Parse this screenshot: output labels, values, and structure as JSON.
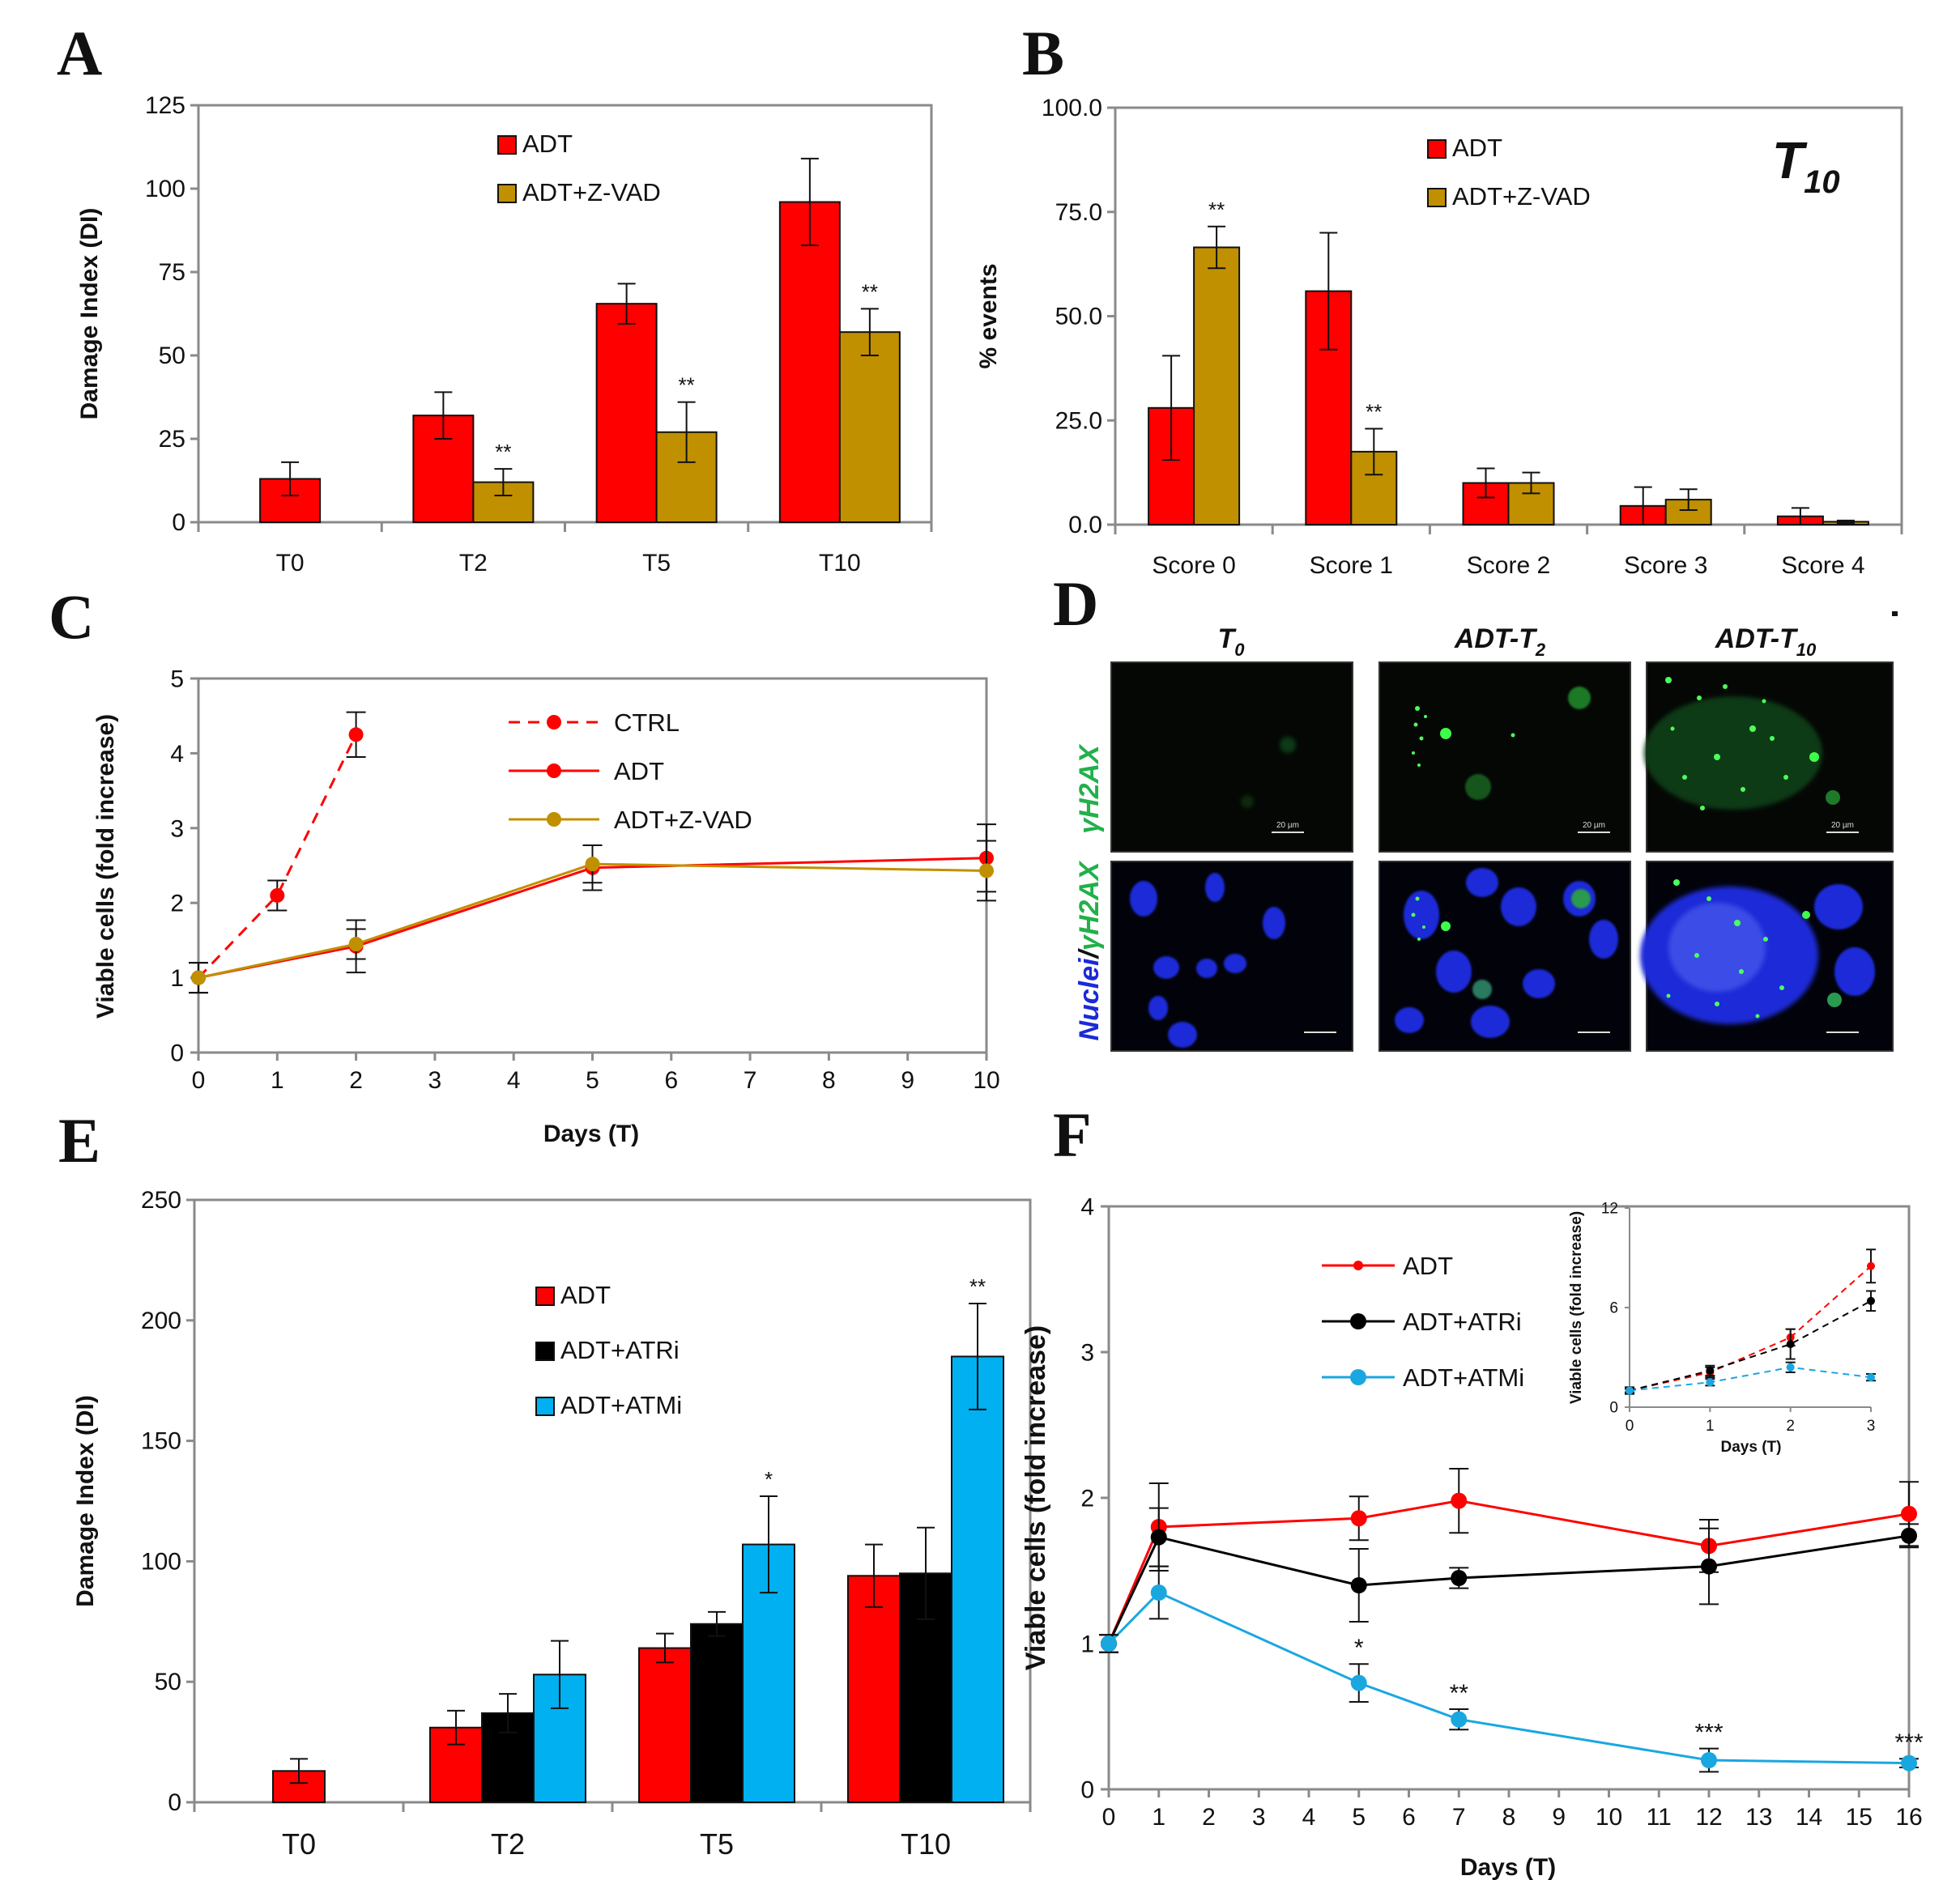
{
  "panel_labels": {
    "A": "A",
    "B": "B",
    "C": "C",
    "D": "D",
    "E": "E",
    "F": "F"
  },
  "chart_data": [
    {
      "id": "A",
      "type": "bar",
      "categories": [
        "T0",
        "T2",
        "T5",
        "T10"
      ],
      "ylabel": "Damage Index (DI)",
      "xlabel": "",
      "ylim": [
        0,
        125
      ],
      "yticks": [
        0,
        25,
        50,
        75,
        100,
        125
      ],
      "series": [
        {
          "name": "ADT",
          "color": "#ff0000",
          "values": [
            13,
            32,
            65.5,
            96
          ],
          "errors": [
            5,
            7,
            6,
            13
          ],
          "stars": [
            "",
            "",
            "",
            ""
          ]
        },
        {
          "name": "ADT+Z-VAD",
          "color": "#c09000",
          "values": [
            null,
            12,
            27,
            57
          ],
          "errors": [
            null,
            4,
            9,
            7
          ],
          "stars": [
            "",
            "**",
            "**",
            "**"
          ]
        }
      ]
    },
    {
      "id": "B",
      "type": "bar",
      "title": "T",
      "title_sub": "10",
      "categories": [
        "Score 0",
        "Score 1",
        "Score 2",
        "Score 3",
        "Score 4"
      ],
      "ylabel": "% events",
      "xlabel": "",
      "ylim": [
        0,
        100
      ],
      "yticks": [
        "0.0",
        "25.0",
        "50.0",
        "75.0",
        "100.0"
      ],
      "series": [
        {
          "name": "ADT",
          "color": "#ff0000",
          "values": [
            28,
            56,
            10,
            4.5,
            2
          ],
          "errors": [
            12.5,
            14,
            3.5,
            4.5,
            2
          ],
          "stars": [
            "",
            "",
            "",
            "",
            ""
          ]
        },
        {
          "name": "ADT+Z-VAD",
          "color": "#c09000",
          "values": [
            66.5,
            17.5,
            10,
            6,
            0.7
          ],
          "errors": [
            5,
            5.5,
            2.5,
            2.5,
            0.3
          ],
          "stars": [
            "**",
            "**",
            "",
            "",
            ""
          ]
        }
      ]
    },
    {
      "id": "C",
      "type": "line",
      "xlabel": "Days (T)",
      "ylabel": "Viable cells (fold increase)",
      "xlim": [
        0,
        10
      ],
      "ylim": [
        0,
        5
      ],
      "xticks": [
        0,
        1,
        2,
        3,
        4,
        5,
        6,
        7,
        8,
        9,
        10
      ],
      "yticks": [
        0,
        1,
        2,
        3,
        4,
        5
      ],
      "series": [
        {
          "name": "CTRL",
          "color": "#ff0000",
          "dashed": true,
          "x": [
            0,
            1,
            2
          ],
          "y": [
            1,
            2.1,
            4.25
          ],
          "errors": [
            0,
            0.2,
            0.3
          ]
        },
        {
          "name": "ADT",
          "color": "#ff0000",
          "dashed": false,
          "x": [
            0,
            2,
            5,
            10
          ],
          "y": [
            1,
            1.42,
            2.47,
            2.6
          ],
          "errors": [
            0.2,
            0.35,
            0.3,
            0.45
          ]
        },
        {
          "name": "ADT+Z-VAD",
          "color": "#c09000",
          "dashed": false,
          "x": [
            0,
            2,
            5,
            10
          ],
          "y": [
            1,
            1.45,
            2.52,
            2.43
          ],
          "errors": [
            0.2,
            0.2,
            0.25,
            0.4
          ]
        }
      ]
    },
    {
      "id": "E",
      "type": "bar",
      "categories": [
        "T0",
        "T2",
        "T5",
        "T10"
      ],
      "ylabel": "Damage Index (DI)",
      "xlabel": "",
      "ylim": [
        0,
        250
      ],
      "yticks": [
        0,
        50,
        100,
        150,
        200,
        250
      ],
      "series": [
        {
          "name": "ADT",
          "color": "#ff0000",
          "values": [
            13,
            31,
            64,
            94
          ],
          "errors": [
            5,
            7,
            6,
            13
          ],
          "stars": [
            "",
            "",
            "",
            ""
          ]
        },
        {
          "name": "ADT+ATRi",
          "color": "#000000",
          "values": [
            null,
            37,
            74,
            95
          ],
          "errors": [
            null,
            8,
            5,
            19
          ],
          "stars": [
            "",
            "",
            "",
            ""
          ]
        },
        {
          "name": "ADT+ATMi",
          "color": "#00b0f0",
          "values": [
            null,
            53,
            107,
            185
          ],
          "errors": [
            null,
            14,
            20,
            22
          ],
          "stars": [
            "",
            "",
            "*",
            "**"
          ]
        }
      ]
    },
    {
      "id": "F",
      "type": "line",
      "xlabel": "Days (T)",
      "ylabel": "Viable cells (fold increase)",
      "xlim": [
        0,
        16
      ],
      "ylim": [
        0,
        4
      ],
      "xticks": [
        0,
        1,
        2,
        3,
        4,
        5,
        6,
        7,
        8,
        9,
        10,
        11,
        12,
        13,
        14,
        15,
        16
      ],
      "yticks": [
        0,
        1,
        2,
        3,
        4
      ],
      "series": [
        {
          "name": "ADT",
          "color": "#ff0000",
          "x": [
            0,
            1,
            5,
            7,
            12,
            16
          ],
          "y": [
            1,
            1.8,
            1.86,
            1.98,
            1.67,
            1.89
          ],
          "errors": [
            0.06,
            0.3,
            0.15,
            0.22,
            0.18,
            0.22
          ],
          "stars": [
            "",
            "",
            "",
            "",
            "",
            ""
          ]
        },
        {
          "name": "ADT+ATRi",
          "color": "#000000",
          "x": [
            0,
            1,
            5,
            7,
            12,
            16
          ],
          "y": [
            1,
            1.73,
            1.4,
            1.45,
            1.53,
            1.74
          ],
          "errors": [
            0.06,
            0.2,
            0.25,
            0.07,
            0.26,
            0.08
          ],
          "stars": [
            "",
            "",
            "",
            "",
            "",
            ""
          ]
        },
        {
          "name": "ADT+ATMi",
          "color": "#1aa7e0",
          "x": [
            0,
            1,
            5,
            7,
            12,
            16
          ],
          "y": [
            1,
            1.35,
            0.73,
            0.48,
            0.2,
            0.18
          ],
          "errors": [
            0.06,
            0.18,
            0.13,
            0.07,
            0.08,
            0.03
          ],
          "stars": [
            "",
            "",
            "*",
            "**",
            "***",
            "***"
          ]
        }
      ],
      "inset": {
        "xlabel": "Days (T)",
        "ylabel": "Viable cells (fold increase)",
        "xlim": [
          0,
          3
        ],
        "ylim": [
          0,
          12
        ],
        "xticks": [
          0,
          1,
          2,
          3
        ],
        "yticks": [
          0,
          6,
          12
        ],
        "series": [
          {
            "name": "ADT",
            "color": "#ff0000",
            "x": [
              0,
              1,
              2,
              3
            ],
            "y": [
              1,
              2.1,
              4.2,
              8.5
            ],
            "errors": [
              0.2,
              0.3,
              0.5,
              1
            ]
          },
          {
            "name": "ADT+ATRi",
            "color": "#000000",
            "x": [
              0,
              1,
              2,
              3
            ],
            "y": [
              1,
              2.2,
              3.8,
              6.4
            ],
            "errors": [
              0.2,
              0.3,
              0.9,
              0.6
            ]
          },
          {
            "name": "ADT+ATMi",
            "color": "#1aa7e0",
            "x": [
              0,
              1,
              2,
              3
            ],
            "y": [
              1,
              1.5,
              2.4,
              1.8
            ],
            "errors": [
              0.1,
              0.2,
              0.3,
              0.2
            ]
          }
        ]
      }
    }
  ],
  "panel_D": {
    "columns": [
      {
        "main": "T",
        "sub": "0"
      },
      {
        "main": "ADT-T",
        "sub": "2"
      },
      {
        "main": "ADT-T",
        "sub": "10"
      }
    ],
    "row_labels": {
      "top": "γH2AX",
      "bottom_blue": "Nuclei",
      "bottom_sep": "/",
      "bottom_green": "γH2AX"
    },
    "scale_bar": "20 µm",
    "colors": {
      "nuclei": "#1a2ad8",
      "gh2ax": "#22e03a"
    }
  }
}
